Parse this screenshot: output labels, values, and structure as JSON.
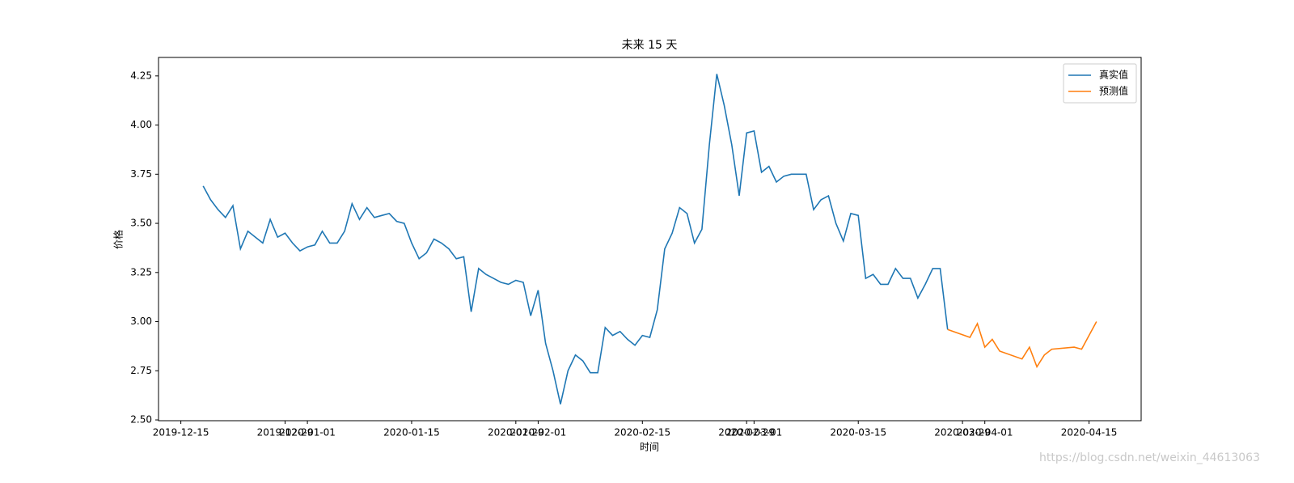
{
  "chart_data": {
    "type": "line",
    "title": "未来 15 天",
    "xlabel": "时间",
    "ylabel": "价格",
    "watermark": "https://blog.csdn.net/weixin_44613063",
    "xlim": [
      "2019-12-12",
      "2020-04-22"
    ],
    "xticks": [
      "2019-12-15",
      "2019-12-29",
      "2020-01-01",
      "2020-01-15",
      "2020-01-29",
      "2020-02-01",
      "2020-02-15",
      "2020-02-29",
      "2020-03-01",
      "2020-03-15",
      "2020-03-29",
      "2020-04-01",
      "2020-04-15"
    ],
    "ylim": [
      2.496,
      4.344
    ],
    "yticks": [
      {
        "value": 2.5,
        "label": "2.50"
      },
      2.75,
      {
        "value": 3,
        "label": "3.00"
      },
      3.25,
      {
        "value": 3.5,
        "label": "3.50"
      },
      3.75,
      {
        "value": 4,
        "label": "4.00"
      },
      4.25
    ],
    "legend": "upper right",
    "series": [
      {
        "name": "真实值",
        "color": "#1f77b4",
        "x": [
          "2019-12-18",
          "2019-12-19",
          "2019-12-20",
          "2019-12-21",
          "2019-12-22",
          "2019-12-23",
          "2019-12-24",
          "2019-12-25",
          "2019-12-26",
          "2019-12-27",
          "2019-12-28",
          "2019-12-29",
          "2019-12-30",
          "2019-12-31",
          "2020-01-01",
          "2020-01-02",
          "2020-01-03",
          "2020-01-04",
          "2020-01-05",
          "2020-01-06",
          "2020-01-07",
          "2020-01-08",
          "2020-01-09",
          "2020-01-10",
          "2020-01-11",
          "2020-01-12",
          "2020-01-13",
          "2020-01-14",
          "2020-01-15",
          "2020-01-16",
          "2020-01-17",
          "2020-01-18",
          "2020-01-19",
          "2020-01-20",
          "2020-01-21",
          "2020-01-22",
          "2020-01-23",
          "2020-01-24",
          "2020-01-25",
          "2020-01-26",
          "2020-01-27",
          "2020-01-28",
          "2020-01-29",
          "2020-01-30",
          "2020-01-31",
          "2020-02-01",
          "2020-02-02",
          "2020-02-03",
          "2020-02-04",
          "2020-02-05",
          "2020-02-06",
          "2020-02-07",
          "2020-02-08",
          "2020-02-09",
          "2020-02-10",
          "2020-02-11",
          "2020-02-12",
          "2020-02-13",
          "2020-02-14",
          "2020-02-15",
          "2020-02-16",
          "2020-02-17",
          "2020-02-18",
          "2020-02-19",
          "2020-02-20",
          "2020-02-21",
          "2020-02-22",
          "2020-02-23",
          "2020-02-24",
          "2020-02-25",
          "2020-02-26",
          "2020-02-27",
          "2020-02-28",
          "2020-02-29",
          "2020-03-01",
          "2020-03-02",
          "2020-03-03",
          "2020-03-04",
          "2020-03-05",
          "2020-03-06",
          "2020-03-07",
          "2020-03-08",
          "2020-03-09",
          "2020-03-10",
          "2020-03-11",
          "2020-03-12",
          "2020-03-13",
          "2020-03-14",
          "2020-03-15",
          "2020-03-16",
          "2020-03-17",
          "2020-03-18",
          "2020-03-19",
          "2020-03-20",
          "2020-03-21",
          "2020-03-22",
          "2020-03-23",
          "2020-03-24",
          "2020-03-25",
          "2020-03-26",
          "2020-03-27"
        ],
        "values": [
          3.69,
          3.62,
          3.57,
          3.53,
          3.59,
          3.37,
          3.46,
          3.43,
          3.4,
          3.52,
          3.43,
          3.45,
          3.4,
          3.36,
          3.38,
          3.39,
          3.46,
          3.4,
          3.4,
          3.46,
          3.6,
          3.52,
          3.58,
          3.53,
          3.54,
          3.55,
          3.51,
          3.5,
          3.4,
          3.32,
          3.35,
          3.42,
          3.4,
          3.37,
          3.32,
          3.33,
          3.05,
          3.27,
          3.24,
          3.22,
          3.2,
          3.19,
          3.21,
          3.2,
          3.03,
          3.16,
          2.89,
          2.75,
          2.58,
          2.75,
          2.83,
          2.8,
          2.74,
          2.74,
          2.97,
          2.93,
          2.95,
          2.91,
          2.88,
          2.93,
          2.92,
          3.06,
          3.37,
          3.45,
          3.58,
          3.55,
          3.4,
          3.47,
          3.9,
          4.26,
          4.1,
          3.9,
          3.64,
          3.96,
          3.97,
          3.76,
          3.79,
          3.71,
          3.74,
          3.75,
          3.75,
          3.75,
          3.57,
          3.62,
          3.64,
          3.5,
          3.41,
          3.55,
          3.54,
          3.22,
          3.24,
          3.19,
          3.19,
          3.27,
          3.22,
          3.22,
          3.12,
          3.19,
          3.27,
          3.27,
          2.96
        ]
      },
      {
        "name": "预测值",
        "color": "#ff7f0e",
        "x": [
          "2020-03-27",
          "2020-03-30",
          "2020-03-31",
          "2020-04-01",
          "2020-04-02",
          "2020-04-03",
          "2020-04-06",
          "2020-04-07",
          "2020-04-08",
          "2020-04-09",
          "2020-04-10",
          "2020-04-13",
          "2020-04-14",
          "2020-04-16"
        ],
        "values": [
          2.96,
          2.92,
          2.99,
          2.87,
          2.91,
          2.85,
          2.81,
          2.87,
          2.77,
          2.83,
          2.86,
          2.87,
          2.86,
          3.0
        ]
      }
    ]
  }
}
